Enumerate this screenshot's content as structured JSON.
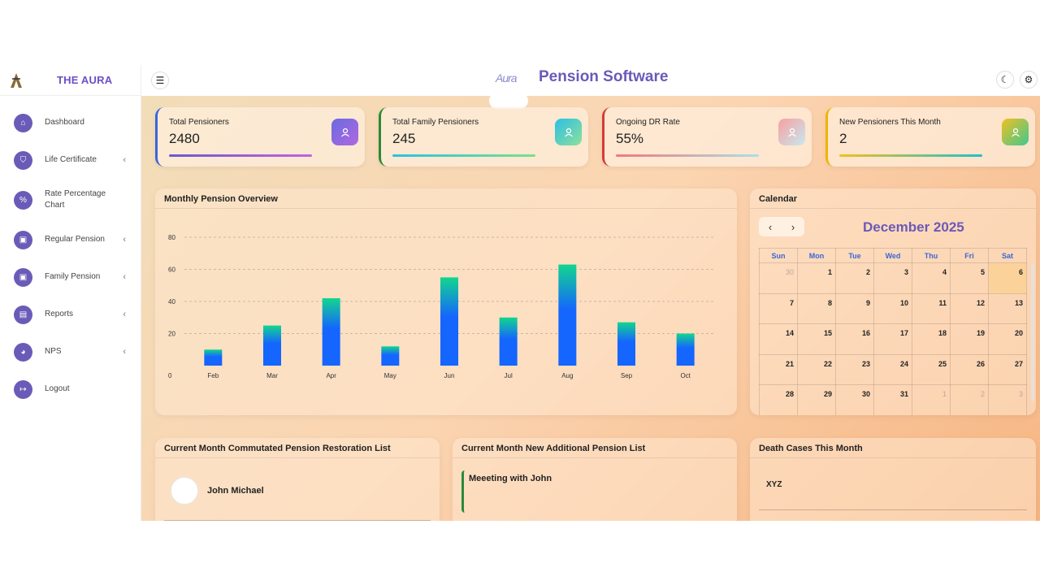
{
  "brand": {
    "name": "THE AURA",
    "logo_icon": "aura-logo"
  },
  "topbar": {
    "logo_text": "Aura",
    "title": "Pension Software",
    "menu_icon": "hamburger-icon",
    "theme_icon": "moon-icon",
    "settings_icon": "gear-icon"
  },
  "sidebar": {
    "items": [
      {
        "label": "Dashboard",
        "icon": "home-icon",
        "has_submenu": false
      },
      {
        "label": "Life Certificate",
        "icon": "shield-icon",
        "has_submenu": true
      },
      {
        "label": "Rate Percentage Chart",
        "icon": "percent-icon",
        "has_submenu": false
      },
      {
        "label": "Regular Pension",
        "icon": "wallet-icon",
        "has_submenu": true
      },
      {
        "label": "Family Pension",
        "icon": "wallet-icon",
        "has_submenu": true
      },
      {
        "label": "Reports",
        "icon": "report-icon",
        "has_submenu": true
      },
      {
        "label": "NPS",
        "icon": "piggy-bank-icon",
        "has_submenu": true
      },
      {
        "label": "Logout",
        "icon": "logout-icon",
        "has_submenu": false
      }
    ]
  },
  "stats": [
    {
      "label": "Total Pensioners",
      "value": "2480",
      "icon": "user-icon",
      "accent": "#3a66d8"
    },
    {
      "label": "Total Family Pensioners",
      "value": "245",
      "icon": "users-icon",
      "accent": "#2a8a3a"
    },
    {
      "label": "Ongoing DR Rate",
      "value": "55%",
      "icon": "trend-chart-icon",
      "accent": "#d63a3a"
    },
    {
      "label": "New Pensioners This Month",
      "value": "2",
      "icon": "users-icon",
      "accent": "#f0b400"
    }
  ],
  "chart_card": {
    "title": "Monthly Pension Overview"
  },
  "chart_data": {
    "type": "bar",
    "title": "Monthly Pension Overview",
    "categories": [
      "Feb",
      "Mar",
      "Apr",
      "May",
      "Jun",
      "Jul",
      "Aug",
      "Sep",
      "Oct"
    ],
    "values": [
      10,
      25,
      42,
      12,
      55,
      30,
      63,
      27,
      20
    ],
    "ylim": [
      0,
      80
    ],
    "yticks": [
      0,
      20,
      40,
      60,
      80
    ],
    "grid": true,
    "colors": {
      "bottom": "#1565ff",
      "top": "#12d68e"
    }
  },
  "calendar": {
    "title": "Calendar",
    "month_label": "December 2025",
    "prev_icon": "chevron-left-icon",
    "next_icon": "chevron-right-icon",
    "weekdays": [
      "Sun",
      "Mon",
      "Tue",
      "Wed",
      "Thu",
      "Fri",
      "Sat"
    ],
    "weeks": [
      [
        "30",
        "1",
        "2",
        "3",
        "4",
        "5",
        "6"
      ],
      [
        "7",
        "8",
        "9",
        "10",
        "11",
        "12",
        "13"
      ],
      [
        "14",
        "15",
        "16",
        "17",
        "18",
        "19",
        "20"
      ],
      [
        "21",
        "22",
        "23",
        "24",
        "25",
        "26",
        "27"
      ],
      [
        "28",
        "29",
        "30",
        "31",
        "1",
        "2",
        "3"
      ]
    ],
    "muted": [
      [
        0,
        0
      ],
      [
        4,
        4
      ],
      [
        4,
        5
      ],
      [
        4,
        6
      ]
    ],
    "today": [
      0,
      6
    ]
  },
  "restoration": {
    "title": "Current Month Commutated Pension Restoration List",
    "people": [
      "John Michael"
    ]
  },
  "additional": {
    "title": "Current Month New Additional Pension List",
    "events": [
      "Meeeting with John"
    ]
  },
  "death": {
    "title": "Death Cases This Month",
    "entries": [
      "XYZ"
    ]
  }
}
